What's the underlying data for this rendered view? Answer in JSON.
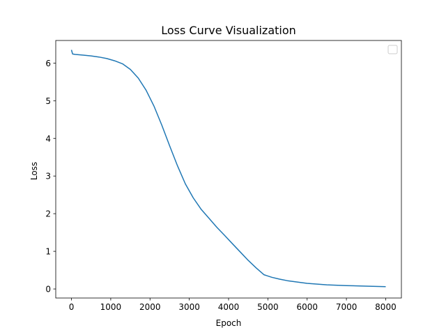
{
  "chart_data": {
    "type": "line",
    "title": "Loss Curve Visualization",
    "xlabel": "Epoch",
    "ylabel": "Loss",
    "xlim": [
      -400,
      8400
    ],
    "ylim": [
      -0.24,
      6.6
    ],
    "xticks": [
      0,
      1000,
      2000,
      3000,
      4000,
      5000,
      6000,
      7000,
      8000
    ],
    "yticks": [
      0,
      1,
      2,
      3,
      4,
      5,
      6
    ],
    "grid": false,
    "legend": "upper right (empty box, no entries)",
    "series": [
      {
        "color": "#1f77b4",
        "x": [
          0,
          30,
          100,
          300,
          500,
          700,
          900,
          1100,
          1300,
          1500,
          1700,
          1900,
          2100,
          2300,
          2500,
          2700,
          2900,
          3100,
          3300,
          3500,
          3700,
          3900,
          4100,
          4300,
          4500,
          4700,
          4900,
          5100,
          5300,
          5500,
          5700,
          6000,
          6500,
          7000,
          7500,
          8000
        ],
        "y": [
          6.35,
          6.24,
          6.23,
          6.21,
          6.19,
          6.16,
          6.12,
          6.06,
          5.98,
          5.83,
          5.6,
          5.28,
          4.86,
          4.35,
          3.8,
          3.27,
          2.79,
          2.42,
          2.12,
          1.88,
          1.64,
          1.42,
          1.2,
          0.98,
          0.76,
          0.56,
          0.38,
          0.31,
          0.26,
          0.22,
          0.19,
          0.15,
          0.11,
          0.09,
          0.075,
          0.06
        ]
      }
    ]
  }
}
